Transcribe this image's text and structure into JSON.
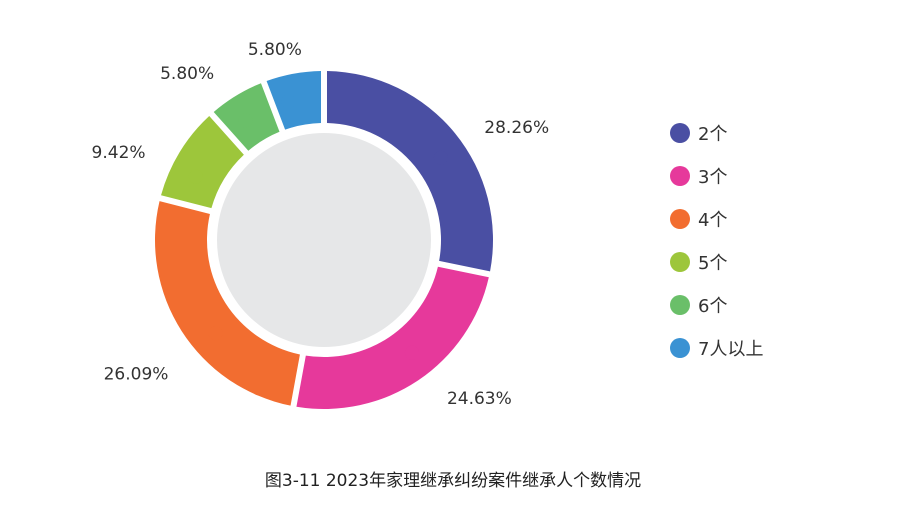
{
  "chart_data": {
    "type": "pie",
    "variant": "donut",
    "categories": [
      "2个",
      "3个",
      "4个",
      "5个",
      "6个",
      "7人以上"
    ],
    "values": [
      28.26,
      24.63,
      26.09,
      9.42,
      5.8,
      5.8
    ],
    "labels": [
      "28.26%",
      "24.63%",
      "26.09%",
      "9.42%",
      "5.80%",
      "5.80%"
    ],
    "colors": [
      "#4a4fa3",
      "#e6399b",
      "#f26d30",
      "#9dc63b",
      "#6abf69",
      "#3a92d3"
    ],
    "center_color": "#e6e7e8",
    "legend_position": "right",
    "title": ""
  },
  "caption": "图3-11  2023年家理继承纠纷案件继承人个数情况"
}
